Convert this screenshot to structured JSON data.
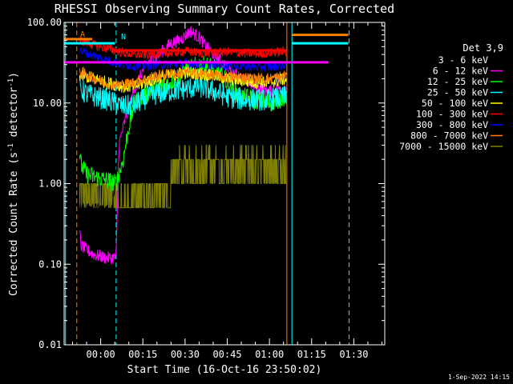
{
  "chart_data": {
    "type": "line",
    "title": "RHESSI Observing Summary Count Rates, Corrected",
    "xlabel": "Start Time (16-Oct-16 23:50:02)",
    "ylabel_main": "Corrected Count Rate (s",
    "ylabel_sup1": "-1",
    "ylabel_mid": " detector",
    "ylabel_sup2": "-1",
    "ylabel_end": ")",
    "x_start_offset_min": -13.0,
    "xlim_min": [
      -13.0,
      101.0
    ],
    "ylim": [
      0.01,
      100.0
    ],
    "yscale": "log",
    "yticks": [
      "100.00",
      "10.00",
      "1.00",
      "0.10",
      "0.01"
    ],
    "ytick_values": [
      100,
      10,
      1,
      0.1,
      0.01
    ],
    "xtick_labels": [
      "00:00",
      "00:15",
      "00:30",
      "00:45",
      "01:00",
      "01:15",
      "01:30"
    ],
    "xtick_values_min": [
      0,
      15,
      30,
      45,
      60,
      75,
      90
    ],
    "footer": "1-Sep-2022 14:15",
    "flag_labels": [
      "A",
      "N"
    ],
    "legend": {
      "header": "Det 3,9",
      "entries": [
        {
          "label": "3 - 6 keV",
          "color": "#000000"
        },
        {
          "label": "6 - 12 keV",
          "color": "#ff00ff"
        },
        {
          "label": "12 - 25 keV",
          "color": "#00ff00"
        },
        {
          "label": "25 - 50 keV",
          "color": "#00ffff"
        },
        {
          "label": "50 - 100 keV",
          "color": "#ffff00"
        },
        {
          "label": "100 - 300 keV",
          "color": "#ff0000"
        },
        {
          "label": "300 - 800 keV",
          "color": "#0000ff"
        },
        {
          "label": "800 - 7000 keV",
          "color": "#ff8000"
        },
        {
          "label": "7000 - 15000 keV",
          "color": "#808000"
        }
      ]
    },
    "series": [
      {
        "name": "3 - 6 keV",
        "color": "#000000",
        "noise": 0.06,
        "x": [
          -7.5,
          -2,
          4,
          6.5,
          8,
          12,
          16,
          20,
          25,
          30,
          35,
          40,
          45,
          50,
          55,
          60,
          66
        ],
        "y": [
          0.5,
          0.5,
          0.48,
          3.0,
          6,
          16,
          28,
          32,
          36,
          38,
          40,
          40,
          38,
          40,
          38,
          36,
          38
        ]
      },
      {
        "name": "6 - 12 keV",
        "color": "#ff00ff",
        "noise": 0.08,
        "x": [
          -7.5,
          -7,
          -5,
          -2,
          2,
          5.5,
          6.5,
          8,
          12,
          16,
          20,
          25,
          28,
          30,
          32,
          35,
          40,
          45,
          50,
          55,
          60,
          66
        ],
        "y": [
          0.25,
          0.17,
          0.15,
          0.13,
          0.12,
          0.12,
          3.0,
          5,
          15,
          30,
          38,
          55,
          60,
          68,
          78,
          65,
          40,
          28,
          20,
          16,
          14,
          16
        ]
      },
      {
        "name": "12 - 25 keV",
        "color": "#00ff00",
        "noise": 0.12,
        "x": [
          -7.5,
          -7,
          -5,
          -2,
          2,
          5.5,
          6.5,
          8,
          10,
          12,
          15,
          18,
          22,
          25,
          30,
          35,
          40,
          45,
          50,
          55,
          60,
          66
        ],
        "y": [
          2.5,
          1.7,
          1.3,
          1.2,
          1.1,
          1.0,
          1.3,
          2.0,
          5,
          10,
          12,
          14,
          16,
          18,
          25,
          30,
          28,
          18,
          12,
          11,
          10,
          12
        ]
      },
      {
        "name": "25 - 50 keV",
        "color": "#00ffff",
        "noise": 0.14,
        "x": [
          -7.5,
          -5,
          -2,
          2,
          5,
          8,
          12,
          15,
          20,
          25,
          30,
          35,
          40,
          45,
          50,
          55,
          60,
          66
        ],
        "y": [
          15,
          13,
          12,
          11,
          10,
          9,
          9.5,
          11,
          13,
          14,
          15,
          16,
          14,
          12,
          11,
          11,
          11,
          12
        ]
      },
      {
        "name": "50 - 100 keV",
        "color": "#ffff00",
        "noise": 0.08,
        "x": [
          -7.5,
          -2,
          2,
          5,
          8,
          12,
          16,
          20,
          25,
          30,
          35,
          40,
          45,
          50,
          55,
          60,
          66
        ],
        "y": [
          22,
          20,
          18,
          17,
          16,
          16,
          18,
          20,
          22,
          24,
          23,
          22,
          20,
          19,
          18,
          18,
          20
        ]
      },
      {
        "name": "100 - 300 keV",
        "color": "#ff0000",
        "noise": 0.06,
        "x": [
          -7.5,
          -2,
          2,
          5,
          8,
          12,
          16,
          20,
          25,
          30,
          35,
          40,
          45,
          50,
          55,
          60,
          66
        ],
        "y": [
          60,
          52,
          48,
          45,
          42,
          40,
          40,
          41,
          42,
          44,
          42,
          42,
          43,
          42,
          41,
          42,
          44
        ]
      },
      {
        "name": "300 - 800 keV",
        "color": "#0000ff",
        "noise": 0.06,
        "x": [
          -7.5,
          -2,
          2,
          5,
          8,
          12,
          16,
          20,
          25,
          30,
          35,
          40,
          45,
          50,
          55,
          60,
          66
        ],
        "y": [
          45,
          38,
          34,
          32,
          30,
          29,
          29,
          30,
          30,
          31,
          30,
          30,
          29,
          29,
          28,
          28,
          30
        ]
      },
      {
        "name": "800 - 7000 keV",
        "color": "#ff8000",
        "noise": 0.07,
        "x": [
          -7.5,
          -2,
          2,
          5,
          8,
          12,
          16,
          20,
          25,
          30,
          35,
          40,
          45,
          50,
          55,
          60,
          66
        ],
        "y": [
          25,
          20,
          18,
          17,
          17,
          18,
          20,
          22,
          23,
          24,
          23,
          22,
          21,
          21,
          20,
          20,
          22
        ]
      }
    ],
    "steps_7000_15000": {
      "name": "7000 - 15000 keV",
      "color": "#808000",
      "levels": [
        0.5,
        1.0,
        2.0,
        3.0
      ]
    },
    "flat_lines": [
      {
        "color": "#ff00ff",
        "x": [
          -13,
          81
        ],
        "y": 32,
        "width": 3
      },
      {
        "color": "#ff0000",
        "x": [
          5,
          66
        ],
        "y": 45,
        "width": 3
      },
      {
        "color": "#00ffff",
        "x": [
          -13,
          5
        ],
        "y": 55,
        "width": 3
      },
      {
        "color": "#ff8000",
        "x": [
          -13,
          -3
        ],
        "y": 62,
        "width": 3
      },
      {
        "color": "#00ffff",
        "x": [
          68,
          88
        ],
        "y": 55,
        "width": 3
      },
      {
        "color": "#ff8000",
        "x": [
          68,
          88
        ],
        "y": 70,
        "width": 3
      }
    ],
    "vertical_markers": [
      {
        "x": -8.5,
        "color": "#ff8000",
        "style": "dashed"
      },
      {
        "x": 5.5,
        "color": "#00ffff",
        "style": "dashed"
      },
      {
        "x": -12.5,
        "color": "#00ffff",
        "style": "solid"
      },
      {
        "x": 66.2,
        "color": "#ff8000",
        "style": "solid"
      },
      {
        "x": 68.0,
        "color": "#00ffff",
        "style": "solid"
      },
      {
        "x": 88.3,
        "color": "#00ffff",
        "style": "dashed"
      }
    ]
  }
}
